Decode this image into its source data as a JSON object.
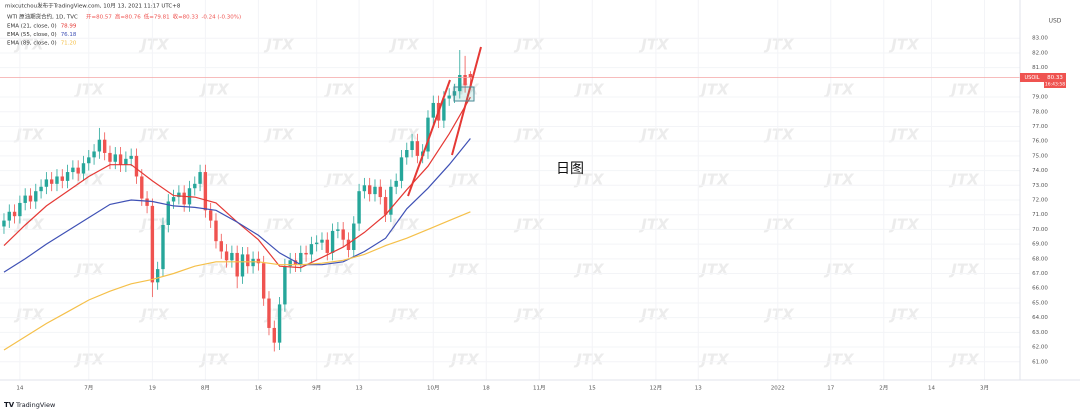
{
  "chart_data": {
    "type": "candlestick",
    "published": "mixcutchou发布于TradingView.com, 10月 13, 2021 11:17 UTC+8",
    "symbol": "WTI 原油期货合约, 1D, TVC",
    "ohlc_labels": [
      "开=80.57",
      "高=80.76",
      "低=79.81",
      "收=80.33",
      "-0.24 (-0.30%)"
    ],
    "currency": "USD",
    "ticker": "USOIL",
    "countdown": "16:43:58",
    "annotation": "日图",
    "up_color": "#26a69a",
    "down_color": "#ef5350",
    "candles": {
      "open": [
        70.2,
        70.6,
        71.2,
        70.9,
        71.8,
        72.3,
        71.9,
        72.6,
        72.9,
        73.4,
        73.1,
        73.6,
        73.3,
        73.9,
        74.2,
        73.8,
        74.5,
        74.9,
        75.3,
        76.1,
        75.2,
        74.6,
        75.1,
        74.4,
        74.8,
        75.0,
        73.6,
        72.1,
        71.6,
        66.4,
        67.3,
        70.3,
        71.9,
        72.2,
        72.5,
        71.7,
        72.8,
        73.1,
        73.9,
        71.3,
        70.6,
        69.2,
        68.5,
        67.9,
        68.4,
        66.8,
        68.3,
        67.5,
        68.0,
        67.7,
        65.3,
        63.3,
        62.3,
        64.9,
        67.5,
        67.9,
        67.6,
        68.4,
        68.3,
        69.0,
        69.1,
        69.3,
        68.4,
        69.9,
        70.0,
        69.3,
        68.6,
        70.4,
        72.6,
        73.0,
        72.4,
        72.9,
        72.2,
        71.0,
        72.9,
        73.3,
        74.9,
        75.4,
        76.0,
        75.0,
        75.3,
        77.6,
        78.6,
        77.4,
        78.9,
        79.1,
        79.4,
        80.5,
        80.57
      ],
      "high": [
        71.1,
        71.7,
        71.7,
        72.3,
        72.8,
        72.8,
        73.1,
        73.4,
        73.9,
        73.9,
        74.1,
        74.1,
        74.4,
        74.7,
        74.7,
        75.0,
        75.4,
        75.8,
        76.9,
        76.6,
        75.7,
        75.6,
        75.6,
        75.3,
        75.5,
        75.5,
        74.1,
        72.6,
        72.1,
        67.8,
        70.8,
        72.4,
        72.7,
        73.0,
        73.0,
        73.3,
        73.6,
        74.4,
        74.4,
        71.8,
        71.1,
        69.7,
        69.0,
        68.9,
        68.9,
        68.8,
        68.8,
        68.5,
        68.5,
        68.2,
        65.8,
        63.8,
        65.4,
        68.0,
        68.4,
        68.4,
        68.9,
        68.9,
        69.5,
        69.6,
        69.8,
        69.8,
        70.4,
        70.5,
        70.5,
        69.8,
        70.9,
        73.1,
        73.5,
        73.5,
        73.4,
        73.4,
        72.7,
        73.4,
        73.8,
        75.4,
        75.9,
        76.5,
        76.5,
        75.8,
        78.1,
        79.1,
        79.1,
        79.4,
        79.6,
        79.9,
        82.2,
        81.8,
        80.76
      ],
      "low": [
        69.7,
        70.1,
        70.4,
        70.4,
        71.3,
        71.4,
        71.4,
        72.1,
        72.4,
        72.6,
        72.6,
        72.8,
        72.8,
        73.4,
        73.3,
        73.3,
        74.0,
        74.4,
        74.8,
        74.7,
        74.1,
        74.1,
        73.9,
        73.9,
        74.3,
        73.1,
        71.6,
        71.1,
        65.4,
        65.9,
        66.8,
        69.8,
        71.4,
        71.7,
        71.2,
        71.2,
        72.3,
        72.6,
        70.8,
        70.1,
        68.7,
        68.0,
        67.4,
        67.4,
        66.0,
        66.3,
        67.0,
        67.0,
        67.2,
        64.8,
        62.8,
        61.7,
        61.8,
        64.4,
        67.0,
        67.1,
        67.1,
        67.8,
        67.8,
        68.5,
        68.6,
        67.9,
        67.9,
        69.4,
        68.8,
        68.1,
        68.1,
        69.9,
        72.1,
        71.9,
        71.9,
        71.7,
        70.5,
        70.5,
        72.4,
        72.8,
        74.4,
        74.9,
        74.5,
        74.5,
        74.8,
        77.1,
        76.9,
        76.9,
        78.4,
        78.6,
        78.9,
        79.3,
        79.81
      ],
      "close": [
        70.6,
        71.2,
        70.9,
        71.8,
        72.3,
        71.9,
        72.6,
        72.9,
        73.4,
        73.1,
        73.6,
        73.3,
        73.9,
        74.2,
        73.8,
        74.5,
        74.9,
        75.3,
        76.1,
        75.2,
        74.6,
        75.1,
        74.4,
        74.8,
        75.0,
        73.6,
        72.1,
        71.6,
        66.4,
        67.3,
        70.3,
        71.9,
        72.2,
        72.5,
        71.7,
        72.8,
        73.1,
        73.9,
        71.3,
        70.6,
        69.2,
        68.5,
        67.9,
        68.4,
        66.8,
        68.3,
        67.5,
        68.0,
        67.7,
        65.3,
        63.3,
        62.3,
        64.9,
        67.5,
        67.9,
        67.6,
        68.4,
        68.3,
        69.0,
        69.1,
        69.3,
        68.4,
        69.9,
        70.0,
        69.3,
        68.6,
        70.4,
        72.6,
        73.0,
        72.4,
        72.9,
        72.2,
        71.0,
        72.9,
        73.3,
        74.9,
        75.4,
        76.0,
        75.0,
        75.3,
        77.6,
        78.6,
        77.4,
        78.9,
        79.1,
        79.4,
        80.5,
        79.8,
        80.33
      ]
    },
    "series": [
      {
        "name": "EMA (21, close, 0)",
        "color": "#e53935",
        "legend_value": "78.99",
        "x": [
          0,
          4,
          8,
          12,
          16,
          20,
          24,
          28,
          32,
          36,
          40,
          44,
          48,
          52,
          56,
          60,
          64,
          68,
          72,
          76,
          80,
          84,
          88
        ],
        "values": [
          68.9,
          70.3,
          71.6,
          72.6,
          73.6,
          74.4,
          74.4,
          73.3,
          72.3,
          72.2,
          71.8,
          70.5,
          69.3,
          67.5,
          67.4,
          68.1,
          68.8,
          69.8,
          71.0,
          72.7,
          74.3,
          76.5,
          78.99
        ]
      },
      {
        "name": "EMA (55, close, 0)",
        "color": "#3f51b5",
        "legend_value": "76.18",
        "x": [
          0,
          4,
          8,
          12,
          16,
          20,
          24,
          28,
          32,
          36,
          40,
          44,
          48,
          52,
          56,
          60,
          64,
          68,
          72,
          76,
          80,
          84,
          88
        ],
        "values": [
          67.1,
          68.0,
          69.0,
          69.9,
          70.8,
          71.7,
          72.0,
          71.9,
          71.6,
          71.5,
          71.3,
          70.5,
          69.6,
          68.4,
          67.6,
          67.6,
          67.8,
          68.5,
          69.4,
          71.4,
          72.8,
          74.4,
          76.18
        ]
      },
      {
        "name": "EMA (89, close, 0)",
        "color": "#f5c04a",
        "legend_value": "71.20",
        "x": [
          0,
          4,
          8,
          12,
          16,
          20,
          24,
          28,
          32,
          36,
          40,
          44,
          48,
          52,
          56,
          60,
          64,
          68,
          72,
          76,
          80,
          84,
          88
        ],
        "values": [
          61.8,
          62.7,
          63.6,
          64.4,
          65.2,
          65.8,
          66.3,
          66.6,
          67.0,
          67.5,
          67.8,
          67.8,
          67.8,
          67.6,
          67.6,
          67.7,
          67.9,
          68.3,
          68.9,
          69.4,
          70.0,
          70.6,
          71.2
        ]
      }
    ],
    "xlim": [
      -0.75,
      191.7
    ],
    "xticks": [
      {
        "value": 3,
        "label": "14"
      },
      {
        "value": 16,
        "label": "7月"
      },
      {
        "value": 28,
        "label": "19"
      },
      {
        "value": 38,
        "label": "8月"
      },
      {
        "value": 48,
        "label": "16"
      },
      {
        "value": 59,
        "label": "9月"
      },
      {
        "value": 67,
        "label": "13"
      },
      {
        "value": 81,
        "label": "10月"
      },
      {
        "value": 91,
        "label": "18"
      },
      {
        "value": 101,
        "label": "11月"
      },
      {
        "value": 111,
        "label": "15"
      },
      {
        "value": 123,
        "label": "12月"
      },
      {
        "value": 131,
        "label": "13"
      },
      {
        "value": 146,
        "label": "2022"
      },
      {
        "value": 156,
        "label": "17"
      },
      {
        "value": 166,
        "label": "2月"
      },
      {
        "value": 175,
        "label": "14"
      },
      {
        "value": 185,
        "label": "3月"
      }
    ],
    "ylim": [
      59.76,
      85.6
    ],
    "yticks": [
      {
        "value": 61,
        "label": "61.00"
      },
      {
        "value": 62,
        "label": "62.00"
      },
      {
        "value": 63,
        "label": "63.00"
      },
      {
        "value": 64,
        "label": "64.00"
      },
      {
        "value": 65,
        "label": "65.00"
      },
      {
        "value": 66,
        "label": "66.00"
      },
      {
        "value": 67,
        "label": "67.00"
      },
      {
        "value": 68,
        "label": "68.00"
      },
      {
        "value": 69,
        "label": "69.00"
      },
      {
        "value": 70,
        "label": "70.00"
      },
      {
        "value": 71,
        "label": "71.00"
      },
      {
        "value": 72,
        "label": "72.00"
      },
      {
        "value": 73,
        "label": "73.00"
      },
      {
        "value": 74,
        "label": "74.00"
      },
      {
        "value": 75,
        "label": "75.00"
      },
      {
        "value": 76,
        "label": "76.00"
      },
      {
        "value": 77,
        "label": "77.00"
      },
      {
        "value": 78,
        "label": "78.00"
      },
      {
        "value": 79,
        "label": "79.00"
      },
      {
        "value": 81,
        "label": "81.00"
      },
      {
        "value": 82,
        "label": "82.00"
      },
      {
        "value": 83,
        "label": "83.00"
      }
    ],
    "grid": true
  },
  "watermark": "JTX",
  "brand": "TradingView"
}
